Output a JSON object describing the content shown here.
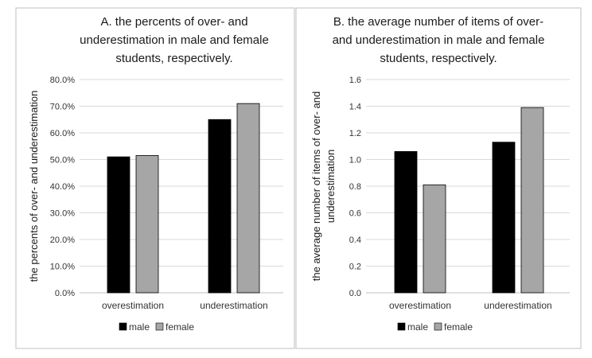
{
  "chart_data": [
    {
      "type": "bar",
      "title_lines": [
        "A. the percents  of over- and",
        "underestimation in male and female",
        "students, respectively."
      ],
      "ylabel": "the percents of over- and underestimation",
      "xlabel": "",
      "categories": [
        "overestimation",
        "underestimation"
      ],
      "series": [
        {
          "name": "male",
          "values": [
            0.51,
            0.65
          ],
          "color": "#000000"
        },
        {
          "name": "female",
          "values": [
            0.515,
            0.71
          ],
          "color": "#a6a6a6"
        }
      ],
      "ylim": [
        0,
        0.8
      ],
      "yticks": [
        0,
        0.1,
        0.2,
        0.3,
        0.4,
        0.5,
        0.6,
        0.7,
        0.8
      ],
      "ytick_labels": [
        "0.0%",
        "10.0%",
        "20.0%",
        "30.0%",
        "40.0%",
        "50.0%",
        "60.0%",
        "70.0%",
        "80.0%"
      ],
      "grid": true,
      "legend": "bottom"
    },
    {
      "type": "bar",
      "title_lines": [
        "B. the average number of items of over-",
        "and underestimation in male and female",
        "students, respectively."
      ],
      "ylabel_lines": [
        "the average number of items of over- and",
        "underestimation"
      ],
      "xlabel": "",
      "categories": [
        "overestimation",
        "underestimation"
      ],
      "series": [
        {
          "name": "male",
          "values": [
            1.06,
            1.13
          ],
          "color": "#000000"
        },
        {
          "name": "female",
          "values": [
            0.81,
            1.39
          ],
          "color": "#a6a6a6"
        }
      ],
      "ylim": [
        0,
        1.6
      ],
      "yticks": [
        0,
        0.2,
        0.4,
        0.6,
        0.8,
        1.0,
        1.2,
        1.4,
        1.6
      ],
      "ytick_labels": [
        "0.0",
        "0.2",
        "0.4",
        "0.6",
        "0.8",
        "1.0",
        "1.2",
        "1.4",
        "1.6"
      ],
      "grid": true,
      "legend": "bottom"
    }
  ]
}
